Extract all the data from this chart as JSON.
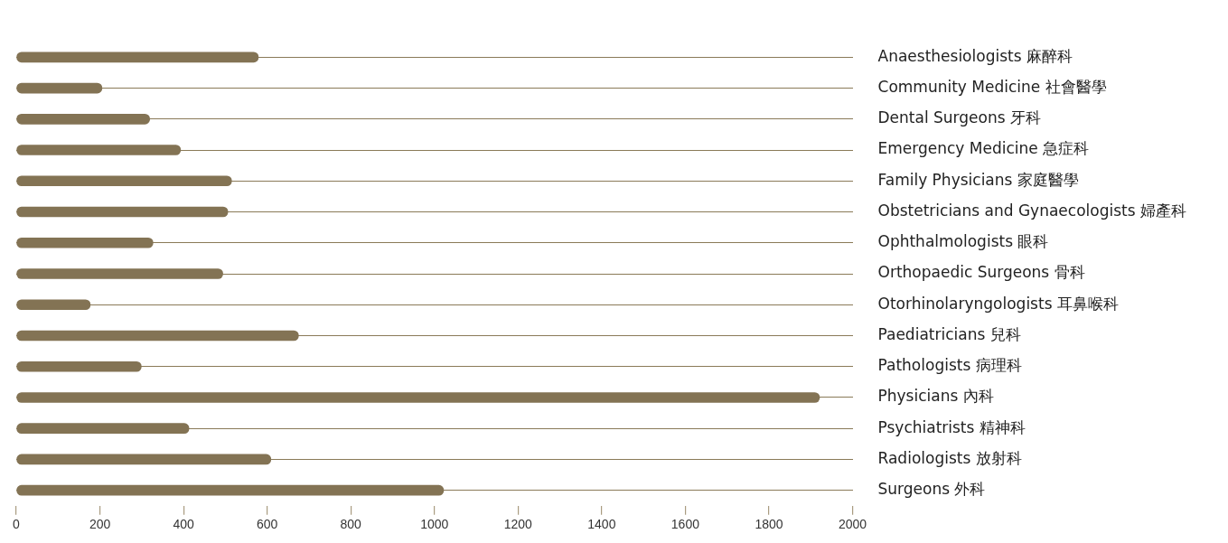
{
  "chart_data": {
    "type": "bar",
    "orientation": "horizontal",
    "categories": [
      "Anaesthesiologists 麻醉科",
      "Community Medicine 社會醫學",
      "Dental Surgeons 牙科",
      "Emergency Medicine 急症科",
      "Family Physicians 家庭醫學",
      "Obstetricians and Gynaecologists 婦產科",
      "Ophthalmologists 眼科",
      "Orthopaedic Surgeons 骨科",
      "Otorhinolaryngologists 耳鼻喉科",
      "Paediatricians 兒科",
      "Pathologists 病理科",
      "Physicians 內科",
      "Psychiatrists 精神科",
      "Radiologists 放射科",
      "Surgeons 外科"
    ],
    "values": [
      579,
      205,
      319,
      393,
      515,
      506,
      327,
      494,
      177,
      675,
      299,
      1921,
      413,
      609,
      1022
    ],
    "color": "#837354",
    "xlim": [
      0,
      2000
    ],
    "xticks": [
      0,
      200,
      400,
      600,
      800,
      1000,
      1200,
      1400,
      1600,
      1800,
      2000
    ],
    "grid": "y",
    "legend": false
  }
}
